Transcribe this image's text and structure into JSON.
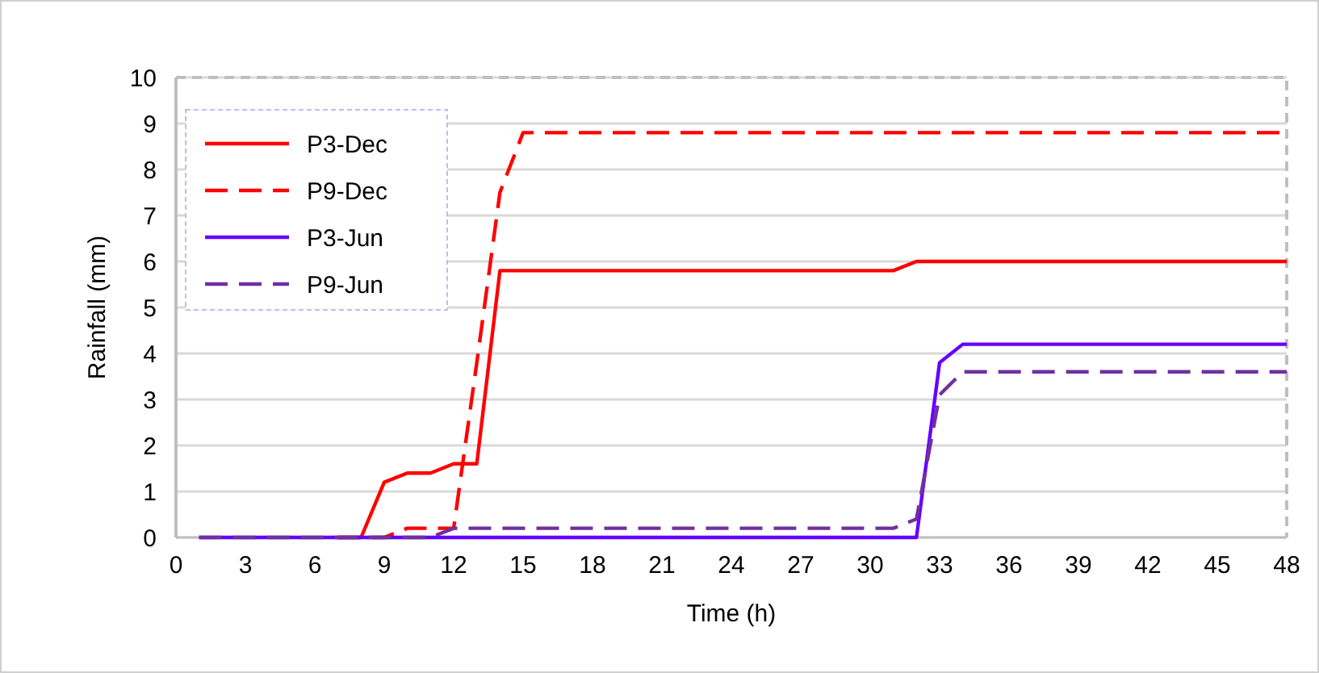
{
  "chart_data": {
    "type": "line",
    "xlabel": "Time (h)",
    "ylabel": "Rainfall (mm)",
    "x": [
      1,
      2,
      3,
      4,
      5,
      6,
      7,
      8,
      9,
      10,
      11,
      12,
      13,
      14,
      15,
      16,
      17,
      18,
      19,
      20,
      21,
      22,
      23,
      24,
      25,
      26,
      27,
      28,
      29,
      30,
      31,
      32,
      33,
      34,
      35,
      36,
      37,
      38,
      39,
      40,
      41,
      42,
      43,
      44,
      45,
      46,
      47,
      48
    ],
    "series": [
      {
        "name": "P3-Dec",
        "color": "#ff0000",
        "line_style": "solid",
        "values": [
          null,
          null,
          null,
          null,
          null,
          null,
          0,
          0,
          1.2,
          1.4,
          1.4,
          1.6,
          1.6,
          5.8,
          5.8,
          5.8,
          5.8,
          5.8,
          5.8,
          5.8,
          5.8,
          5.8,
          5.8,
          5.8,
          5.8,
          5.8,
          5.8,
          5.8,
          5.8,
          5.8,
          5.8,
          6,
          6,
          6,
          6,
          6,
          6,
          6,
          6,
          6,
          6,
          6,
          6,
          6,
          6,
          6,
          6,
          6
        ]
      },
      {
        "name": "P9-Dec",
        "color": "#ff0000",
        "line_style": "dashed",
        "values": [
          null,
          null,
          null,
          null,
          null,
          null,
          0,
          0,
          0,
          0.2,
          0.2,
          0.2,
          3.8,
          7.5,
          8.8,
          8.8,
          8.8,
          8.8,
          8.8,
          8.8,
          8.8,
          8.8,
          8.8,
          8.8,
          8.8,
          8.8,
          8.8,
          8.8,
          8.8,
          8.8,
          8.8,
          8.8,
          8.8,
          8.8,
          8.8,
          8.8,
          8.8,
          8.8,
          8.8,
          8.8,
          8.8,
          8.8,
          8.8,
          8.8,
          8.8,
          8.8,
          8.8,
          8.8
        ]
      },
      {
        "name": "P3-Jun",
        "color": "#6600ff",
        "line_style": "solid",
        "values": [
          0,
          0,
          0,
          0,
          0,
          0,
          0,
          0,
          0,
          0,
          0,
          0,
          0,
          0,
          0,
          0,
          0,
          0,
          0,
          0,
          0,
          0,
          0,
          0,
          0,
          0,
          0,
          0,
          0,
          0,
          0,
          0,
          3.8,
          4.2,
          4.2,
          4.2,
          4.2,
          4.2,
          4.2,
          4.2,
          4.2,
          4.2,
          4.2,
          4.2,
          4.2,
          4.2,
          4.2,
          4.2
        ]
      },
      {
        "name": "P9-Jun",
        "color": "#7030a0",
        "line_style": "dashed",
        "values": [
          0,
          0,
          0,
          0,
          0,
          0,
          0,
          0,
          0,
          0,
          0,
          0.2,
          0.2,
          0.2,
          0.2,
          0.2,
          0.2,
          0.2,
          0.2,
          0.2,
          0.2,
          0.2,
          0.2,
          0.2,
          0.2,
          0.2,
          0.2,
          0.2,
          0.2,
          0.2,
          0.2,
          0.4,
          3.1,
          3.6,
          3.6,
          3.6,
          3.6,
          3.6,
          3.6,
          3.6,
          3.6,
          3.6,
          3.6,
          3.6,
          3.6,
          3.6,
          3.6,
          3.6
        ]
      }
    ],
    "xlim": [
      0,
      48
    ],
    "xticks": [
      0,
      3,
      6,
      9,
      12,
      15,
      18,
      21,
      24,
      27,
      30,
      33,
      36,
      39,
      42,
      45,
      48
    ],
    "ylim": [
      0,
      10
    ],
    "yticks": [
      0,
      1,
      2,
      3,
      4,
      5,
      6,
      7,
      8,
      9,
      10
    ],
    "grid": "y",
    "legend": "top left",
    "marker": "none"
  }
}
